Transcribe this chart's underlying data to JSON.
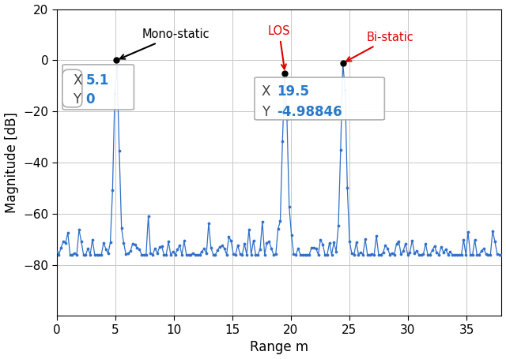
{
  "xlabel": "Range m",
  "ylabel": "Magnitude [dB]",
  "xlim": [
    0,
    38
  ],
  "ylim": [
    -100,
    20
  ],
  "yticks": [
    20,
    0,
    -20,
    -40,
    -60,
    -80
  ],
  "xticks": [
    0,
    5,
    10,
    15,
    20,
    25,
    30,
    35
  ],
  "line_color": "#3070C8",
  "marker_color": "#3070C8",
  "bg_color": "#ffffff",
  "grid_color": "#c8c8c8",
  "mono_x": 5.1,
  "mono_y": 0.0,
  "los_x": 19.5,
  "los_y": -4.98846,
  "bistatic_x": 24.5,
  "bistatic_y": 1.5,
  "noise_seed": 17,
  "noise_floor": -76,
  "noise_std": 4.5,
  "tooltip1_x_val": "5.1",
  "tooltip1_y_val": "0",
  "tooltip2_x_val": "19.5",
  "tooltip2_y_val": "-4.98846",
  "anno_mono_label": "Mono-static",
  "anno_los_label": "LOS",
  "anno_bistatic_label": "Bi-static",
  "label_color_gray": "#404040",
  "label_color_blue": "#2979C8",
  "label_color_red": "#dd0000"
}
